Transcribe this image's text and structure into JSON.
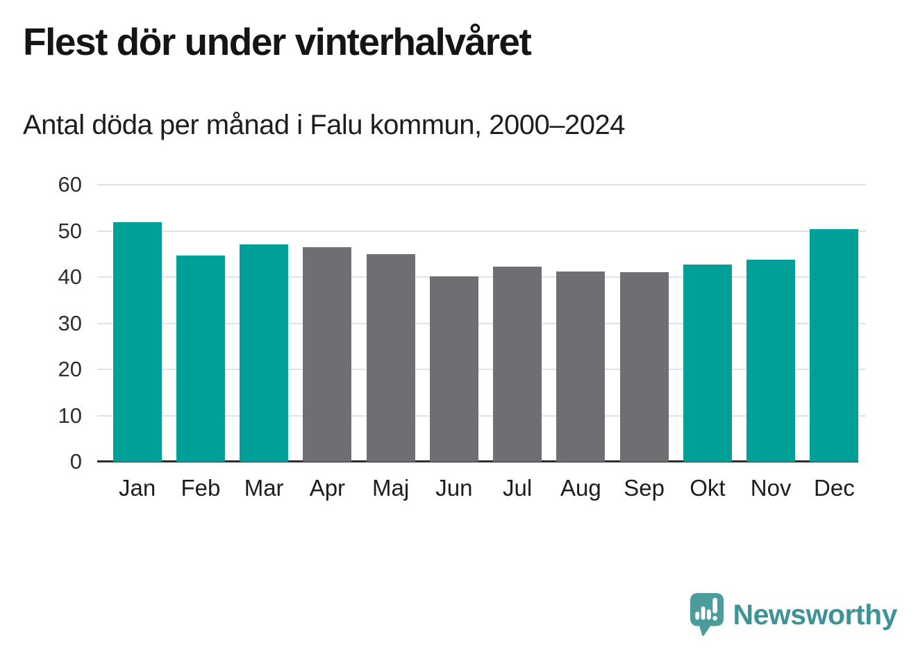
{
  "header": {
    "title": "Flest dör under vinterhalvåret",
    "subtitle": "Antal döda per månad i Falu kommun, 2000–2024"
  },
  "chart_data": {
    "type": "bar",
    "title": "Flest dör under vinterhalvåret",
    "subtitle": "Antal döda per månad i Falu kommun, 2000–2024",
    "categories": [
      "Jan",
      "Feb",
      "Mar",
      "Apr",
      "Maj",
      "Jun",
      "Jul",
      "Aug",
      "Sep",
      "Okt",
      "Nov",
      "Dec"
    ],
    "values": [
      51.9,
      44.7,
      47.0,
      46.5,
      45.0,
      40.1,
      42.2,
      41.2,
      41.0,
      42.7,
      43.8,
      50.4
    ],
    "bar_roles": [
      "winter",
      "winter",
      "winter",
      "summer",
      "summer",
      "summer",
      "summer",
      "summer",
      "summer",
      "winter",
      "winter",
      "winter"
    ],
    "xlabel": "",
    "ylabel": "",
    "ylim": [
      0,
      60
    ],
    "yticks": [
      0,
      10,
      20,
      30,
      40,
      50,
      60
    ],
    "grid": true,
    "legend": false,
    "colors": {
      "winter": "#00A099",
      "summer": "#6E6E73",
      "gridline": "#E2E2E2",
      "axis": "#2B2B2B",
      "tick_text": "#2e2e2e"
    }
  },
  "footer": {
    "brand": "Newsworthy",
    "brand_text_color": "#3F9396",
    "logo_icon_color": "#4C9C9C",
    "logo_icon": "newsworthy-speech-bubble-barchart-icon"
  }
}
